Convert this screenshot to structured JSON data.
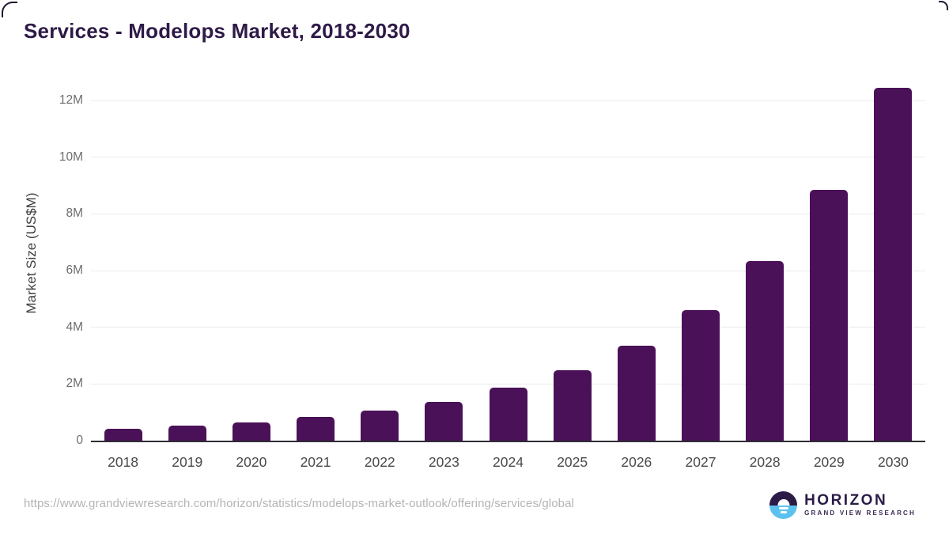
{
  "page": {
    "title": "Services - Modelops Market, 2018-2030",
    "source_url": "https://www.grandviewresearch.com/horizon/statistics/modelops-market-outlook/offering/services/global"
  },
  "logo": {
    "wordmark": "HORIZON",
    "subtitle": "GRAND VIEW RESEARCH"
  },
  "colors": {
    "bar_fill": "#4a1158",
    "title_text": "#2e1a47",
    "axis_text": "#494949",
    "tick_text": "#6e6e6e",
    "gridline": "#ebebee",
    "baseline": "#2e2e33",
    "url_text": "#b4b4b4",
    "logo_purple": "#2b1b47",
    "logo_blue": "#5bc2ef"
  },
  "chart_data": {
    "type": "bar",
    "title": "Services - Modelops Market, 2018-2030",
    "categories": [
      "2018",
      "2019",
      "2020",
      "2021",
      "2022",
      "2023",
      "2024",
      "2025",
      "2026",
      "2027",
      "2028",
      "2029",
      "2030"
    ],
    "values": [
      0.41,
      0.52,
      0.65,
      0.83,
      1.06,
      1.38,
      1.86,
      2.49,
      3.35,
      4.6,
      6.33,
      8.85,
      12.45
    ],
    "unit": "US$M (axis shown in M)",
    "xlabel": "",
    "ylabel": "Market Size (US$M)",
    "ylim": [
      0,
      12
    ],
    "ytick_values": [
      0,
      2,
      4,
      6,
      8,
      10,
      12
    ],
    "ytick_labels": [
      "0",
      "2M",
      "4M",
      "6M",
      "8M",
      "10M",
      "12M"
    ],
    "grid": true,
    "legend": false,
    "bar_color": "#4a1158"
  }
}
